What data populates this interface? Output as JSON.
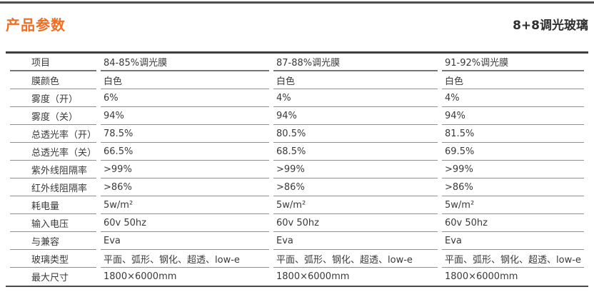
{
  "header": {
    "title": "产品参数",
    "product": "8+8调光玻璃"
  },
  "colors": {
    "accent_orange": "#f06e22",
    "text_dark": "#3a3a3a",
    "rule_dark": "#4d4d4d",
    "row_line_gray": "#8f8f8f"
  },
  "table": {
    "header": [
      "项目",
      "84-85%调光膜",
      "87-88%调光膜",
      "91-92%调光膜"
    ],
    "rows": [
      [
        "膜颜色",
        "白色",
        "白色",
        "白色"
      ],
      [
        "雾度（开）",
        "6%",
        "4%",
        "4%"
      ],
      [
        "雾度（关）",
        "94%",
        "94%",
        "94%"
      ],
      [
        "总透光率（开）",
        "78.5%",
        "80.5%",
        "81.5%"
      ],
      [
        "总透光率（关）",
        "66.5%",
        "68.5%",
        "69.5%"
      ],
      [
        "紫外线阻隔率",
        ">99%",
        ">99%",
        ">99%"
      ],
      [
        "红外线阻隔率",
        ">86%",
        ">86%",
        ">86%"
      ],
      [
        "耗电量",
        "5w/m²",
        "5w/m²",
        "5w/m²"
      ],
      [
        "输入电压",
        "60v 50hz",
        "60v 50hz",
        "60v 50hz"
      ],
      [
        "与兼容",
        "Eva",
        "Eva",
        "Eva"
      ],
      [
        "玻璃类型",
        "平面、弧形、钢化、超透、low-e",
        "平面、弧形、钢化、超透、low-e",
        "平面、弧形、钢化、超透、low-e"
      ],
      [
        "最大尺寸",
        "1800×6000mm",
        "1800×6000mm",
        "1800×6000mm"
      ]
    ]
  }
}
